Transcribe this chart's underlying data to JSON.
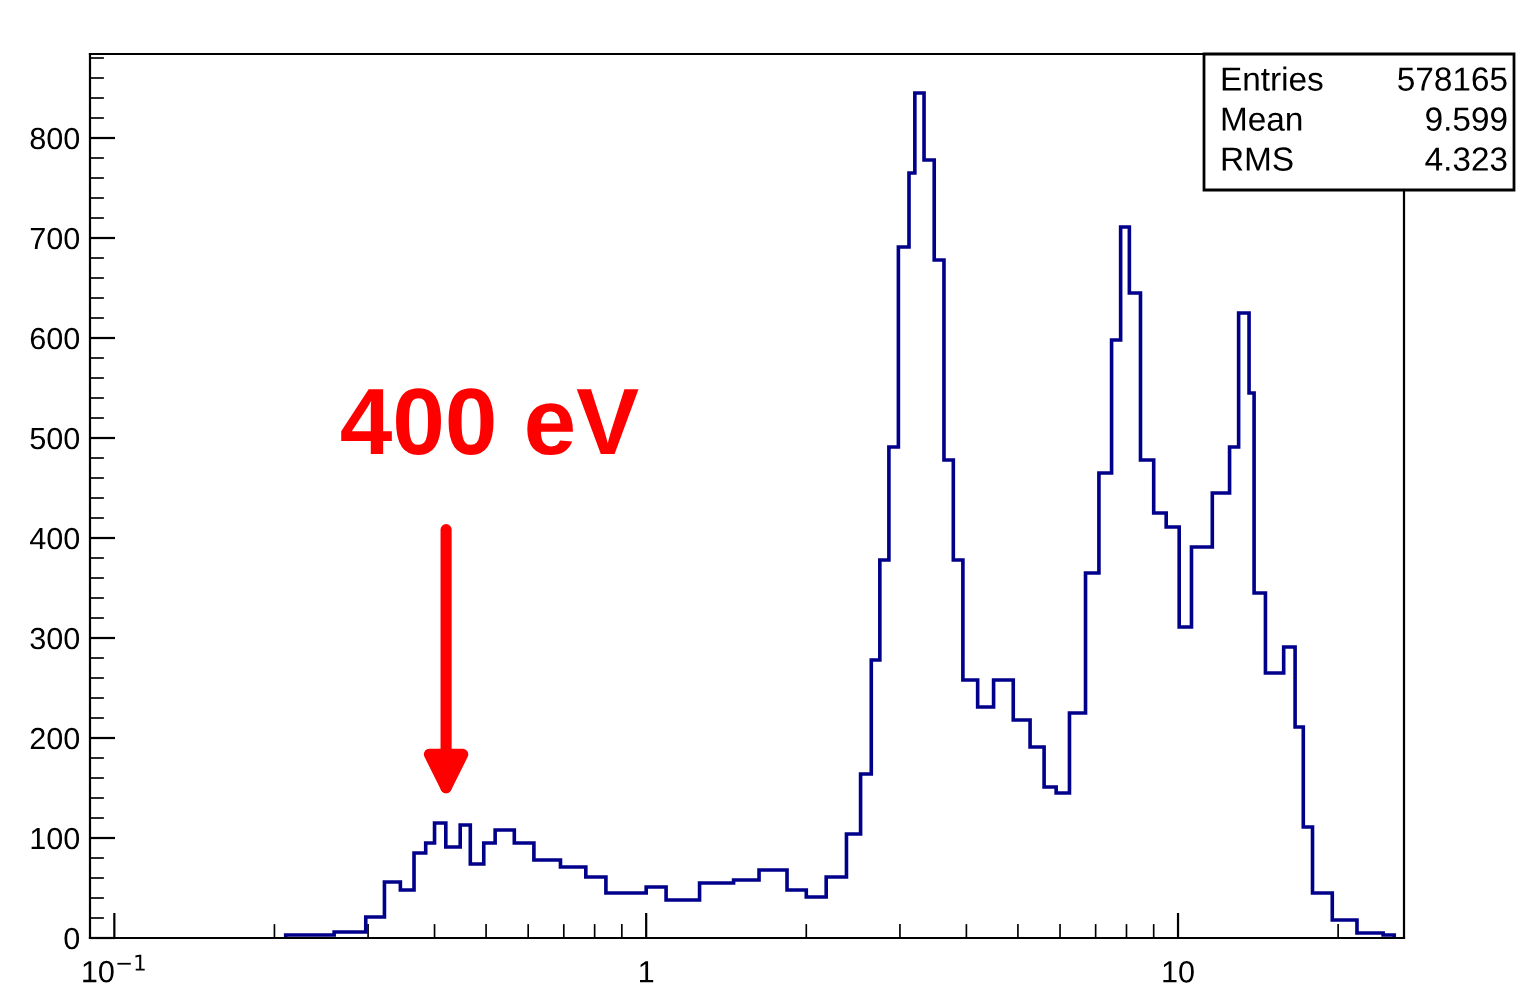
{
  "chart_data": {
    "type": "histogram",
    "bins": [
      0.21,
      0.259,
      0.297,
      0.322,
      0.345,
      0.366,
      0.385,
      0.4,
      0.42,
      0.447,
      0.467,
      0.495,
      0.52,
      0.565,
      0.615,
      0.69,
      0.77,
      0.84,
      1.0,
      1.09,
      1.26,
      1.46,
      1.63,
      1.84,
      2.0,
      2.18,
      2.38,
      2.53,
      2.65,
      2.75,
      2.86,
      2.98,
      3.12,
      3.2,
      3.33,
      3.48,
      3.63,
      3.78,
      3.94,
      4.2,
      4.5,
      4.9,
      5.27,
      5.6,
      5.9,
      6.25,
      6.7,
      7.1,
      7.5,
      7.8,
      8.1,
      8.5,
      9.0,
      9.5,
      10.05,
      10.6,
      11.6,
      12.5,
      13.0,
      13.6,
      13.9,
      14.6,
      15.8,
      16.6,
      17.2,
      17.9,
      19.5,
      21.7,
      24.3,
      25.5
    ],
    "values": [
      3,
      6,
      21,
      56,
      48,
      85,
      95,
      115,
      91,
      113,
      74,
      95,
      108,
      95,
      78,
      71,
      61,
      45,
      51,
      38,
      55,
      58,
      68,
      48,
      41,
      61,
      104,
      164,
      278,
      378,
      491,
      691,
      765,
      845,
      778,
      678,
      478,
      378,
      258,
      231,
      258,
      218,
      191,
      151,
      145,
      225,
      365,
      465,
      598,
      711,
      645,
      478,
      425,
      411,
      311,
      391,
      445,
      491,
      625,
      545,
      345,
      265,
      291,
      211,
      111,
      45,
      18,
      5,
      3
    ],
    "color": "#00008b",
    "log": "x",
    "xlim": [
      0.09,
      26.6
    ],
    "xticks": [
      {
        "value": 0.1,
        "label": "10$^{−1}$"
      },
      1,
      10
    ],
    "ylim": [
      0,
      884
    ],
    "yticks": [
      0,
      100,
      200,
      300,
      400,
      500,
      600,
      700,
      800
    ],
    "grid": false,
    "annotations": [
      "400 eV",
      "Entries 578165",
      "Mean 9.599",
      "RMS 4.323"
    ]
  }
}
